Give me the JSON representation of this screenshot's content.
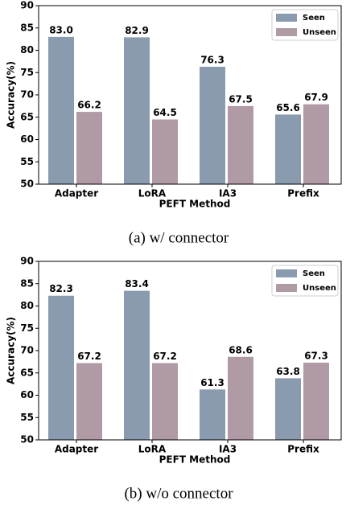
{
  "chart_data": [
    {
      "type": "bar",
      "caption": "(a) w/ connector",
      "xlabel": "PEFT Method",
      "ylabel": "Accuracy(%)",
      "categories": [
        "Adapter",
        "LoRA",
        "IA3",
        "Prefix"
      ],
      "series": [
        {
          "name": "Seen",
          "color": "#8a9bb0",
          "values": [
            83.0,
            82.9,
            76.3,
            65.6
          ],
          "value_labels": [
            "83.0",
            "82.9",
            "76.3",
            "65.6"
          ]
        },
        {
          "name": "Unseen",
          "color": "#b09aa6",
          "values": [
            66.2,
            64.5,
            67.5,
            67.9
          ],
          "value_labels": [
            "66.2",
            "64.5",
            "67.5",
            "67.9"
          ]
        }
      ],
      "ylim": [
        50,
        90
      ],
      "yticks": [
        50,
        55,
        60,
        65,
        70,
        75,
        80,
        85,
        90
      ],
      "legend": "upper right"
    },
    {
      "type": "bar",
      "caption": "(b) w/o connector",
      "xlabel": "PEFT Method",
      "ylabel": "Accuracy(%)",
      "categories": [
        "Adapter",
        "LoRA",
        "IA3",
        "Prefix"
      ],
      "series": [
        {
          "name": "Seen",
          "color": "#8a9bb0",
          "values": [
            82.3,
            83.4,
            61.3,
            63.8
          ],
          "value_labels": [
            "82.3",
            "83.4",
            "61.3",
            "63.8"
          ]
        },
        {
          "name": "Unseen",
          "color": "#b09aa6",
          "values": [
            67.2,
            67.2,
            68.6,
            67.3
          ],
          "value_labels": [
            "67.2",
            "67.2",
            "68.6",
            "67.3"
          ]
        }
      ],
      "ylim": [
        50,
        90
      ],
      "yticks": [
        50,
        55,
        60,
        65,
        70,
        75,
        80,
        85,
        90
      ],
      "legend": "upper right"
    }
  ]
}
